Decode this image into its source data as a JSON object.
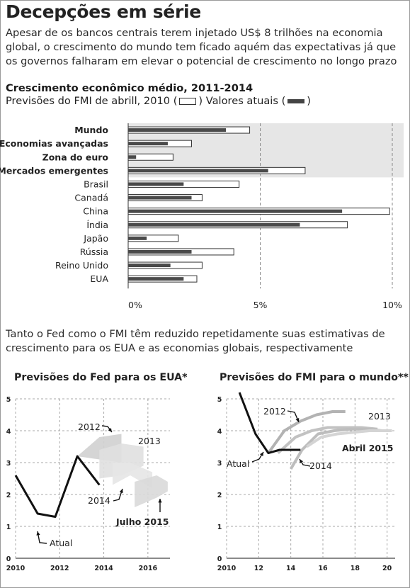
{
  "title": "Decepções em série",
  "lede": "Apesar de os bancos centrais terem injetado US$ 8 trilhões na economia global, o crescimento do mundo tem ficado aquém das expectativas já que os governos falharam em elevar o potencial de crescimento no longo prazo",
  "bar_chart_title": "Crescimento econômico médio, 2011-2014",
  "legend": {
    "forecast_prefix": "Previsões do FMI de abrill, 2010 (",
    "actual_prefix": ") Valores atuais (",
    "suffix": ")"
  },
  "paragraph2": "Tanto o Fed como o FMI têm reduzido repetidamente suas estimativas de crescimento para os EUA e as economias globais, respectivamente",
  "chart_data": [
    {
      "type": "bar",
      "title": "Crescimento econômico médio, 2011-2014",
      "orientation": "horizontal",
      "categories": [
        "Mundo",
        "Economias avançadas",
        "Zona do euro",
        "Mercados emergentes",
        "Brasil",
        "Canadá",
        "China",
        "Índia",
        "Japão",
        "Rússia",
        "Reino Unido",
        "EUA"
      ],
      "bold_categories": [
        "Mundo",
        "Economias avançadas",
        "Zona do euro",
        "Mercados emergentes"
      ],
      "series": [
        {
          "name": "Previsões do FMI de abrill, 2010",
          "style": "open",
          "values": [
            4.6,
            2.4,
            1.7,
            6.7,
            4.2,
            2.8,
            9.9,
            8.3,
            1.9,
            4.0,
            2.8,
            2.6
          ]
        },
        {
          "name": "Valores atuais",
          "style": "filled",
          "values": [
            3.7,
            1.5,
            0.3,
            5.3,
            2.1,
            2.4,
            8.1,
            6.5,
            0.7,
            2.4,
            1.6,
            2.1
          ]
        }
      ],
      "xlim": [
        0,
        10
      ],
      "ticks": [
        "0%",
        "5%",
        "10%"
      ],
      "tick_values": [
        0,
        5,
        10
      ],
      "colors": {
        "filled": "#4a4a4a",
        "open": "#ffffff",
        "band": "#e6e6e6",
        "grid": "#8a8a8a"
      }
    },
    {
      "type": "line",
      "title": "Previsões do Fed para os EUA*",
      "xlim": [
        2010,
        2017
      ],
      "ylim": [
        0,
        5
      ],
      "x_ticks": [
        2010,
        2012,
        2014,
        2016
      ],
      "x_tick_labels": [
        "2010",
        "2012",
        "2014",
        "2016"
      ],
      "y_ticks": [
        0,
        1,
        2,
        3,
        4,
        5
      ],
      "series": [
        {
          "name": "Atual",
          "points": [
            [
              2010,
              2.6
            ],
            [
              2011,
              1.4
            ],
            [
              2011.8,
              1.3
            ],
            [
              2012.8,
              3.2
            ],
            [
              2013.8,
              2.3
            ]
          ]
        }
      ],
      "forecast_bands": [
        {
          "name": "2012",
          "upper": [
            [
              2012.8,
              3.2
            ],
            [
              2013.8,
              3.8
            ],
            [
              2014.8,
              3.9
            ]
          ],
          "lower": [
            [
              2012.8,
              3.2
            ],
            [
              2013.8,
              3.1
            ],
            [
              2014.8,
              3.0
            ]
          ]
        },
        {
          "name": "2013",
          "upper": [
            [
              2013.8,
              3.4
            ],
            [
              2014.8,
              3.6
            ],
            [
              2015.8,
              3.5
            ]
          ],
          "lower": [
            [
              2013.8,
              2.5
            ],
            [
              2014.8,
              2.6
            ],
            [
              2015.8,
              2.9
            ]
          ]
        },
        {
          "name": "2014",
          "upper": [
            [
              2014.4,
              3.0
            ],
            [
              2015.2,
              3.0
            ],
            [
              2016.2,
              2.7
            ]
          ],
          "lower": [
            [
              2014.4,
              2.3
            ],
            [
              2015.2,
              2.6
            ],
            [
              2016.2,
              2.2
            ]
          ]
        },
        {
          "name": "Julho 2015",
          "upper": [
            [
              2015.4,
              2.4
            ],
            [
              2016.4,
              2.6
            ],
            [
              2016.9,
              2.4
            ]
          ],
          "lower": [
            [
              2015.4,
              1.6
            ],
            [
              2016.4,
              1.9
            ],
            [
              2016.9,
              2.1
            ]
          ]
        }
      ],
      "annotations": [
        "2012",
        "2013",
        "2014",
        "Julho 2015",
        "Atual"
      ],
      "colors": {
        "actual": "#111111",
        "grid": "#a8a8a8",
        "bands": [
          "#d0d0d0",
          "#e0e0e0",
          "#e6e6e6",
          "#d9d9d9"
        ]
      }
    },
    {
      "type": "line",
      "title": "Previsões do FMI para o mundo**",
      "xlim": [
        2010,
        2020.5
      ],
      "ylim": [
        0,
        5
      ],
      "x_ticks": [
        2010,
        2012,
        2014,
        2016,
        2018,
        2020
      ],
      "x_tick_labels": [
        "2010",
        "12",
        "14",
        "16",
        "18",
        "20"
      ],
      "y_ticks": [
        0,
        1,
        2,
        3,
        4,
        5
      ],
      "series": [
        {
          "name": "Atual",
          "points": [
            [
              2010.8,
              5.2
            ],
            [
              2011.8,
              3.9
            ],
            [
              2012.6,
              3.3
            ],
            [
              2013.3,
              3.4
            ],
            [
              2014.6,
              3.4
            ]
          ]
        },
        {
          "name": "2012",
          "points": [
            [
              2012.6,
              3.3
            ],
            [
              2013.6,
              4.0
            ],
            [
              2014.6,
              4.3
            ],
            [
              2015.6,
              4.5
            ],
            [
              2016.6,
              4.6
            ],
            [
              2017.4,
              4.6
            ]
          ]
        },
        {
          "name": "2013",
          "points": [
            [
              2013.2,
              3.3
            ],
            [
              2014.3,
              3.8
            ],
            [
              2015.3,
              4.0
            ],
            [
              2016.3,
              4.1
            ],
            [
              2017.3,
              4.1
            ],
            [
              2018.4,
              4.1
            ],
            [
              2019.4,
              4.05
            ]
          ]
        },
        {
          "name": "2014",
          "points": [
            [
              2014.0,
              2.8
            ],
            [
              2014.7,
              3.4
            ],
            [
              2015.7,
              3.9
            ],
            [
              2016.7,
              4.0
            ],
            [
              2017.7,
              4.05
            ],
            [
              2018.7,
              4.05
            ],
            [
              2019.7,
              4.0
            ]
          ]
        },
        {
          "name": "Abril 2015",
          "points": [
            [
              2015.0,
              3.5
            ],
            [
              2015.9,
              3.8
            ],
            [
              2016.9,
              3.9
            ],
            [
              2017.9,
              3.95
            ],
            [
              2018.9,
              4.0
            ],
            [
              2020.3,
              4.0
            ]
          ]
        }
      ],
      "annotations": [
        "2012",
        "2013",
        "Abril 2015",
        "2014",
        "Atual"
      ],
      "colors": {
        "actual": "#111111",
        "forecasts": [
          "#b3b3b3",
          "#c2c2c2",
          "#bdbdbd",
          "#d4d4d4"
        ],
        "grid": "#a8a8a8"
      }
    }
  ]
}
